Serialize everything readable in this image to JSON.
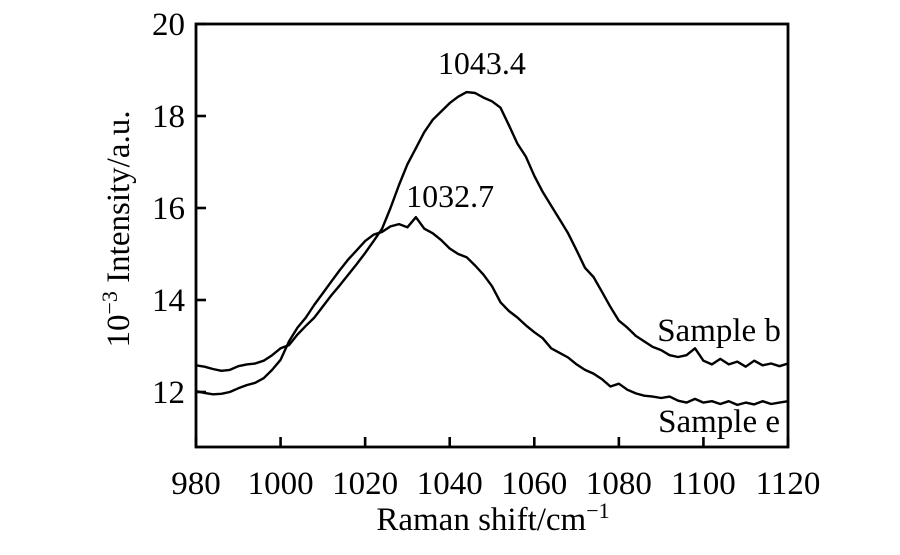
{
  "chart_data": {
    "type": "line",
    "title": "",
    "xlabel_base": "Raman shift/cm",
    "xlabel_sup": "−1",
    "ylabel_base": "10",
    "ylabel_sup": "−3",
    "ylabel_rest": " Intensity/a.u.",
    "xlim": [
      980,
      1120
    ],
    "ylim": [
      10.8,
      20
    ],
    "x_ticks": [
      980,
      1000,
      1020,
      1040,
      1060,
      1080,
      1100,
      1120
    ],
    "y_ticks": [
      12,
      14,
      16,
      18,
      20
    ],
    "grid": false,
    "legend_position": "inline-right",
    "line_color": "#000000",
    "background_color": "#ffffff",
    "x_start": 980,
    "x_step": 2,
    "series": [
      {
        "name": "Sample b",
        "peak_annotation": "1043.4",
        "peak_x": 1043.4,
        "peak_y": 18.52,
        "values": [
          12.58,
          12.55,
          12.5,
          12.46,
          12.48,
          12.56,
          12.6,
          12.62,
          12.68,
          12.8,
          12.95,
          13.02,
          13.25,
          13.44,
          13.62,
          13.86,
          14.1,
          14.32,
          14.55,
          14.78,
          15.02,
          15.28,
          15.55,
          16.0,
          16.5,
          16.95,
          17.3,
          17.65,
          17.92,
          18.1,
          18.28,
          18.42,
          18.52,
          18.5,
          18.4,
          18.32,
          18.18,
          17.8,
          17.4,
          17.12,
          16.7,
          16.35,
          16.05,
          15.75,
          15.45,
          15.08,
          14.7,
          14.5,
          14.18,
          13.85,
          13.55,
          13.4,
          13.22,
          13.1,
          12.98,
          12.91,
          12.8,
          12.76,
          12.8,
          12.95,
          12.68,
          12.6,
          12.72,
          12.6,
          12.66,
          12.55,
          12.68,
          12.58,
          12.62,
          12.56,
          12.62
        ]
      },
      {
        "name": "Sample e",
        "peak_annotation": "1032.7",
        "peak_x": 1032.7,
        "peak_y": 15.8,
        "values": [
          12.02,
          11.98,
          11.95,
          11.96,
          12.0,
          12.08,
          12.15,
          12.2,
          12.3,
          12.48,
          12.7,
          13.1,
          13.4,
          13.62,
          13.9,
          14.15,
          14.4,
          14.65,
          14.88,
          15.08,
          15.28,
          15.42,
          15.48,
          15.6,
          15.65,
          15.58,
          15.8,
          15.55,
          15.45,
          15.3,
          15.12,
          15.0,
          14.93,
          14.75,
          14.55,
          14.3,
          13.95,
          13.76,
          13.62,
          13.45,
          13.3,
          13.17,
          12.95,
          12.85,
          12.75,
          12.6,
          12.48,
          12.4,
          12.28,
          12.12,
          12.18,
          12.05,
          11.97,
          11.92,
          11.9,
          11.87,
          11.9,
          11.81,
          11.77,
          11.85,
          11.77,
          11.8,
          11.74,
          11.8,
          11.72,
          11.77,
          11.73,
          11.8,
          11.74,
          11.77,
          11.8
        ]
      }
    ],
    "annotations": [
      {
        "text": "1043.4",
        "x": 1047.6,
        "y": 19.15
      },
      {
        "text": "1032.7",
        "x": 1040.1,
        "y": 16.26
      }
    ],
    "series_labels": [
      {
        "text": "Sample b",
        "x": 1103.7,
        "y": 13.35
      },
      {
        "text": "Sample e",
        "x": 1103.7,
        "y": 11.37
      }
    ]
  }
}
